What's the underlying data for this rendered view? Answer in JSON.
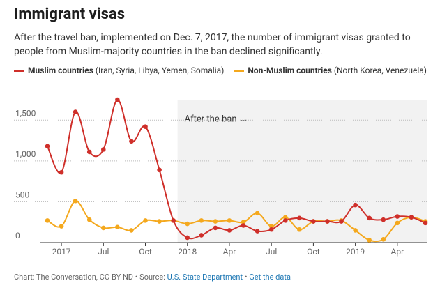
{
  "chart_data": {
    "type": "line",
    "title": "Immigrant visas",
    "subtitle": "After the travel ban, implemented on Dec. 7, 2017, the number of immigrant visas granted to people from Muslim-majority countries in the ban declined significantly.",
    "x": [
      "2017-03",
      "2017-04",
      "2017-05",
      "2017-06",
      "2017-07",
      "2017-08",
      "2017-09",
      "2017-10",
      "2017-11",
      "2017-12",
      "2018-01",
      "2018-02",
      "2018-03",
      "2018-04",
      "2018-05",
      "2018-06",
      "2018-07",
      "2018-08",
      "2018-09",
      "2018-10",
      "2018-11",
      "2018-12",
      "2019-01",
      "2019-02",
      "2019-03",
      "2019-04",
      "2019-05",
      "2019-06"
    ],
    "series": [
      {
        "name": "Muslim countries",
        "detail": "(Iran, Syria, Libya, Yemen, Somalia)",
        "color": "#cf2f2a",
        "values": [
          1180,
          860,
          1600,
          1110,
          1140,
          1750,
          1240,
          1420,
          890,
          270,
          60,
          90,
          180,
          150,
          210,
          140,
          160,
          270,
          300,
          260,
          260,
          260,
          460,
          300,
          280,
          320,
          310,
          240
        ]
      },
      {
        "name": "Non-Muslim countries",
        "detail": "(North Korea, Venezuela)",
        "color": "#f4a81d",
        "values": [
          270,
          200,
          510,
          280,
          180,
          190,
          150,
          270,
          260,
          270,
          230,
          270,
          260,
          270,
          250,
          360,
          200,
          310,
          160,
          260,
          260,
          270,
          150,
          30,
          40,
          240,
          310,
          260
        ]
      }
    ],
    "xlim": [
      "2017-03",
      "2019-06"
    ],
    "xticks": [
      {
        "value": "2017-04",
        "label": "2017"
      },
      {
        "value": "2017-07",
        "label": "Jul"
      },
      {
        "value": "2017-10",
        "label": "Oct"
      },
      {
        "value": "2018-01",
        "label": "2018"
      },
      {
        "value": "2018-04",
        "label": "Apr"
      },
      {
        "value": "2018-07",
        "label": "Jul"
      },
      {
        "value": "2018-10",
        "label": "Oct"
      },
      {
        "value": "2019-01",
        "label": "2019"
      },
      {
        "value": "2019-04",
        "label": "Apr"
      }
    ],
    "ylim": [
      0,
      1750
    ],
    "yticks": [
      0,
      500,
      {
        "value": 1000,
        "label": "1,000"
      },
      {
        "value": 1500,
        "label": "1,500"
      }
    ],
    "grid": true,
    "shade": {
      "from": "2017-12",
      "label": "After the ban →"
    },
    "footer": {
      "credit": "Chart: The Conversation, CC-BY-ND • Source:",
      "source": "U.S. State Department",
      "separator": "•",
      "link": "Get the data"
    }
  }
}
